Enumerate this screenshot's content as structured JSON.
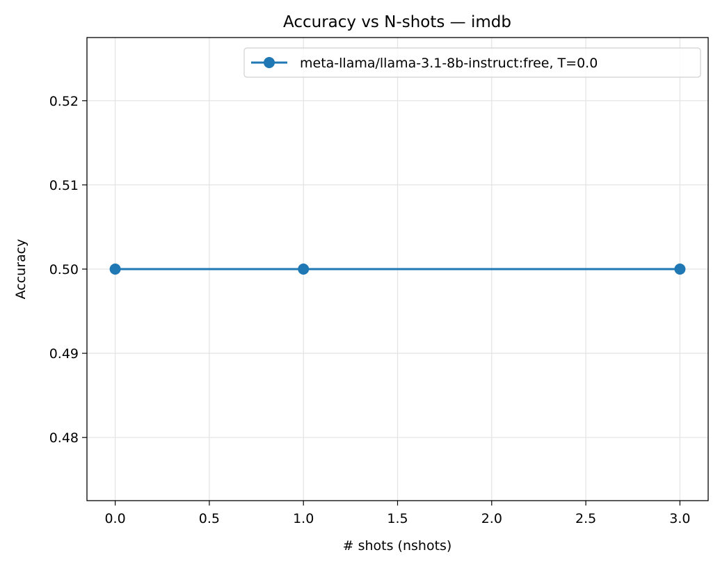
{
  "chart_data": {
    "type": "line",
    "title": "Accuracy vs N-shots — imdb",
    "xlabel": "# shots (nshots)",
    "ylabel": "Accuracy",
    "xlim": [
      -0.15,
      3.15
    ],
    "ylim": [
      0.4725,
      0.5275
    ],
    "xticks": [
      0.0,
      0.5,
      1.0,
      1.5,
      2.0,
      2.5,
      3.0
    ],
    "xtick_labels": [
      "0.0",
      "0.5",
      "1.0",
      "1.5",
      "2.0",
      "2.5",
      "3.0"
    ],
    "yticks": [
      0.48,
      0.49,
      0.5,
      0.51,
      0.52
    ],
    "ytick_labels": [
      "0.48",
      "0.49",
      "0.50",
      "0.51",
      "0.52"
    ],
    "grid": true,
    "legend_position": "top-right",
    "series": [
      {
        "name": "meta-llama/llama-3.1-8b-instruct:free, T=0.0",
        "color": "#1f77b4",
        "marker": "circle",
        "x": [
          0,
          1,
          3
        ],
        "y": [
          0.5,
          0.5,
          0.5
        ]
      }
    ]
  }
}
